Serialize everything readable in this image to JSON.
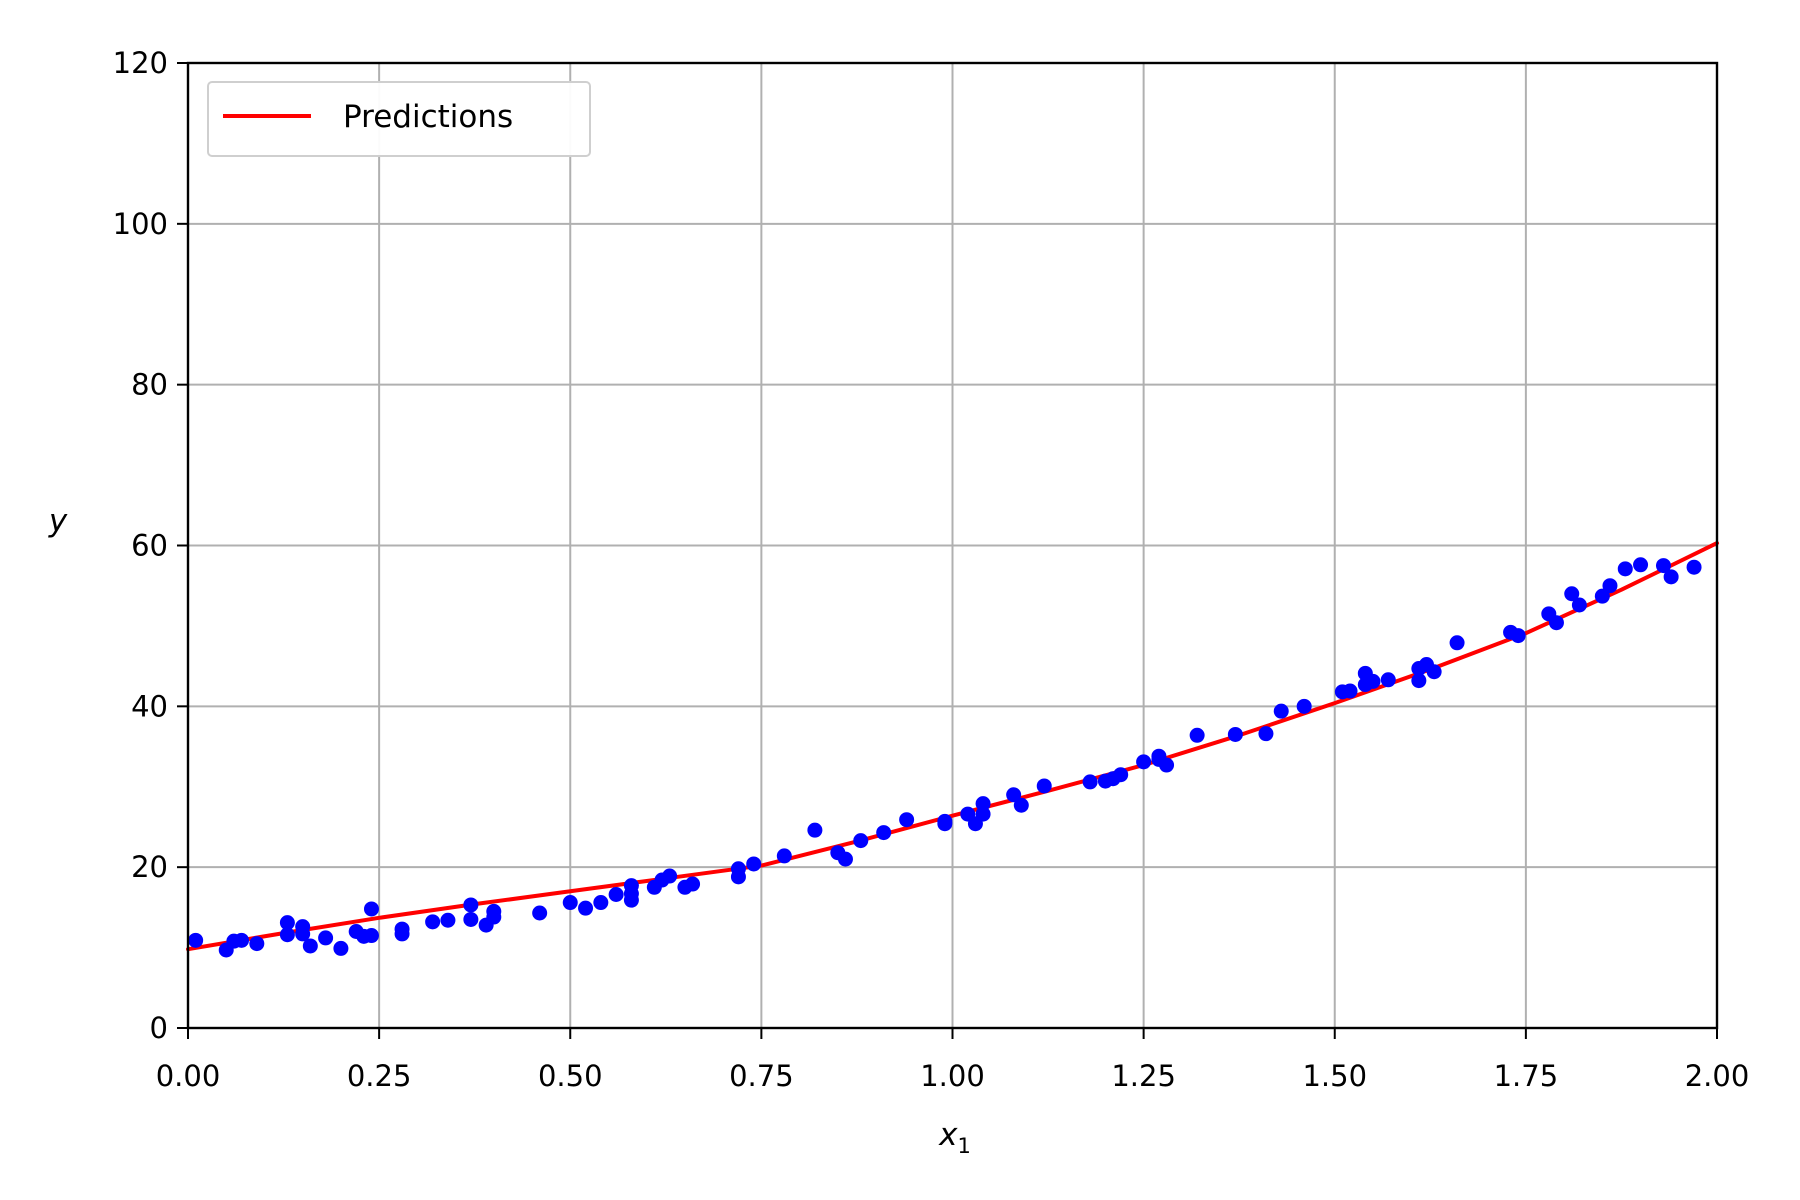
{
  "chart_data": {
    "type": "scatter",
    "xlabel": "x",
    "xlabel_subscript": "1",
    "ylabel": "y",
    "xlim": [
      0,
      2
    ],
    "ylim": [
      0,
      120
    ],
    "x_ticks": [
      "0.00",
      "0.25",
      "0.50",
      "0.75",
      "1.00",
      "1.25",
      "1.50",
      "1.75",
      "2.00"
    ],
    "y_ticks": [
      "0",
      "20",
      "40",
      "60",
      "80",
      "100",
      "120"
    ],
    "grid": true,
    "legend_position": "top-left",
    "colors": {
      "points": "#0000ff",
      "line": "#ff0000",
      "grid": "#b0b0b0",
      "axes": "#000000"
    },
    "series": [
      {
        "kind": "line",
        "name": "Predictions",
        "equation_description": "Curve from about 9.8 at x=0 to about 60.3 at x=2",
        "x": [
          0,
          0.125,
          0.25,
          0.375,
          0.5,
          0.625,
          0.75,
          0.875,
          1.0,
          1.125,
          1.25,
          1.375,
          1.5,
          1.625,
          1.75,
          1.875,
          2.0
        ],
        "y": [
          9.8,
          11.8,
          13.7,
          15.4,
          17.0,
          18.6,
          20.2,
          23.2,
          26.4,
          29.5,
          32.7,
          36.4,
          40.4,
          44.6,
          49.1,
          54.5,
          60.3
        ]
      },
      {
        "kind": "scatter",
        "x": [
          0.01,
          0.05,
          0.06,
          0.07,
          0.09,
          0.13,
          0.13,
          0.15,
          0.15,
          0.16,
          0.18,
          0.2,
          0.22,
          0.23,
          0.24,
          0.24,
          0.28,
          0.28,
          0.32,
          0.34,
          0.37,
          0.37,
          0.39,
          0.4,
          0.4,
          0.46,
          0.5,
          0.52,
          0.54,
          0.56,
          0.58,
          0.58,
          0.58,
          0.61,
          0.62,
          0.63,
          0.65,
          0.66,
          0.72,
          0.72,
          0.74,
          0.78,
          0.82,
          0.85,
          0.86,
          0.88,
          0.91,
          0.94,
          0.99,
          0.99,
          1.02,
          1.03,
          1.04,
          1.04,
          1.08,
          1.09,
          1.12,
          1.18,
          1.2,
          1.21,
          1.22,
          1.25,
          1.27,
          1.27,
          1.28,
          1.32,
          1.37,
          1.41,
          1.43,
          1.46,
          1.51,
          1.52,
          1.54,
          1.54,
          1.55,
          1.57,
          1.61,
          1.61,
          1.62,
          1.63,
          1.66,
          1.73,
          1.74,
          1.78,
          1.79,
          1.81,
          1.82,
          1.85,
          1.86,
          1.88,
          1.9,
          1.93,
          1.94,
          1.97
        ],
        "y": [
          10.9,
          9.7,
          10.8,
          10.9,
          10.5,
          13.1,
          11.6,
          11.7,
          12.6,
          10.2,
          11.2,
          9.9,
          12.0,
          11.4,
          11.5,
          14.8,
          11.7,
          12.3,
          13.2,
          13.4,
          15.3,
          13.5,
          12.8,
          14.5,
          13.8,
          14.3,
          15.6,
          14.9,
          15.6,
          16.6,
          17.7,
          15.9,
          16.7,
          17.5,
          18.4,
          18.9,
          17.5,
          17.9,
          18.8,
          19.8,
          20.4,
          21.4,
          24.6,
          21.8,
          21.0,
          23.3,
          24.3,
          25.9,
          25.4,
          25.7,
          26.6,
          25.4,
          26.6,
          27.9,
          29.0,
          27.7,
          30.1,
          30.6,
          30.7,
          31.0,
          31.5,
          33.1,
          33.4,
          33.8,
          32.7,
          36.4,
          36.5,
          36.6,
          39.4,
          40.0,
          41.8,
          41.9,
          42.7,
          44.1,
          43.1,
          43.3,
          43.2,
          44.7,
          45.2,
          44.3,
          47.9,
          49.2,
          48.8,
          51.5,
          50.4,
          54.0,
          52.6,
          53.7,
          55.0,
          57.1,
          57.6,
          57.5,
          56.1,
          57.3
        ]
      }
    ]
  }
}
